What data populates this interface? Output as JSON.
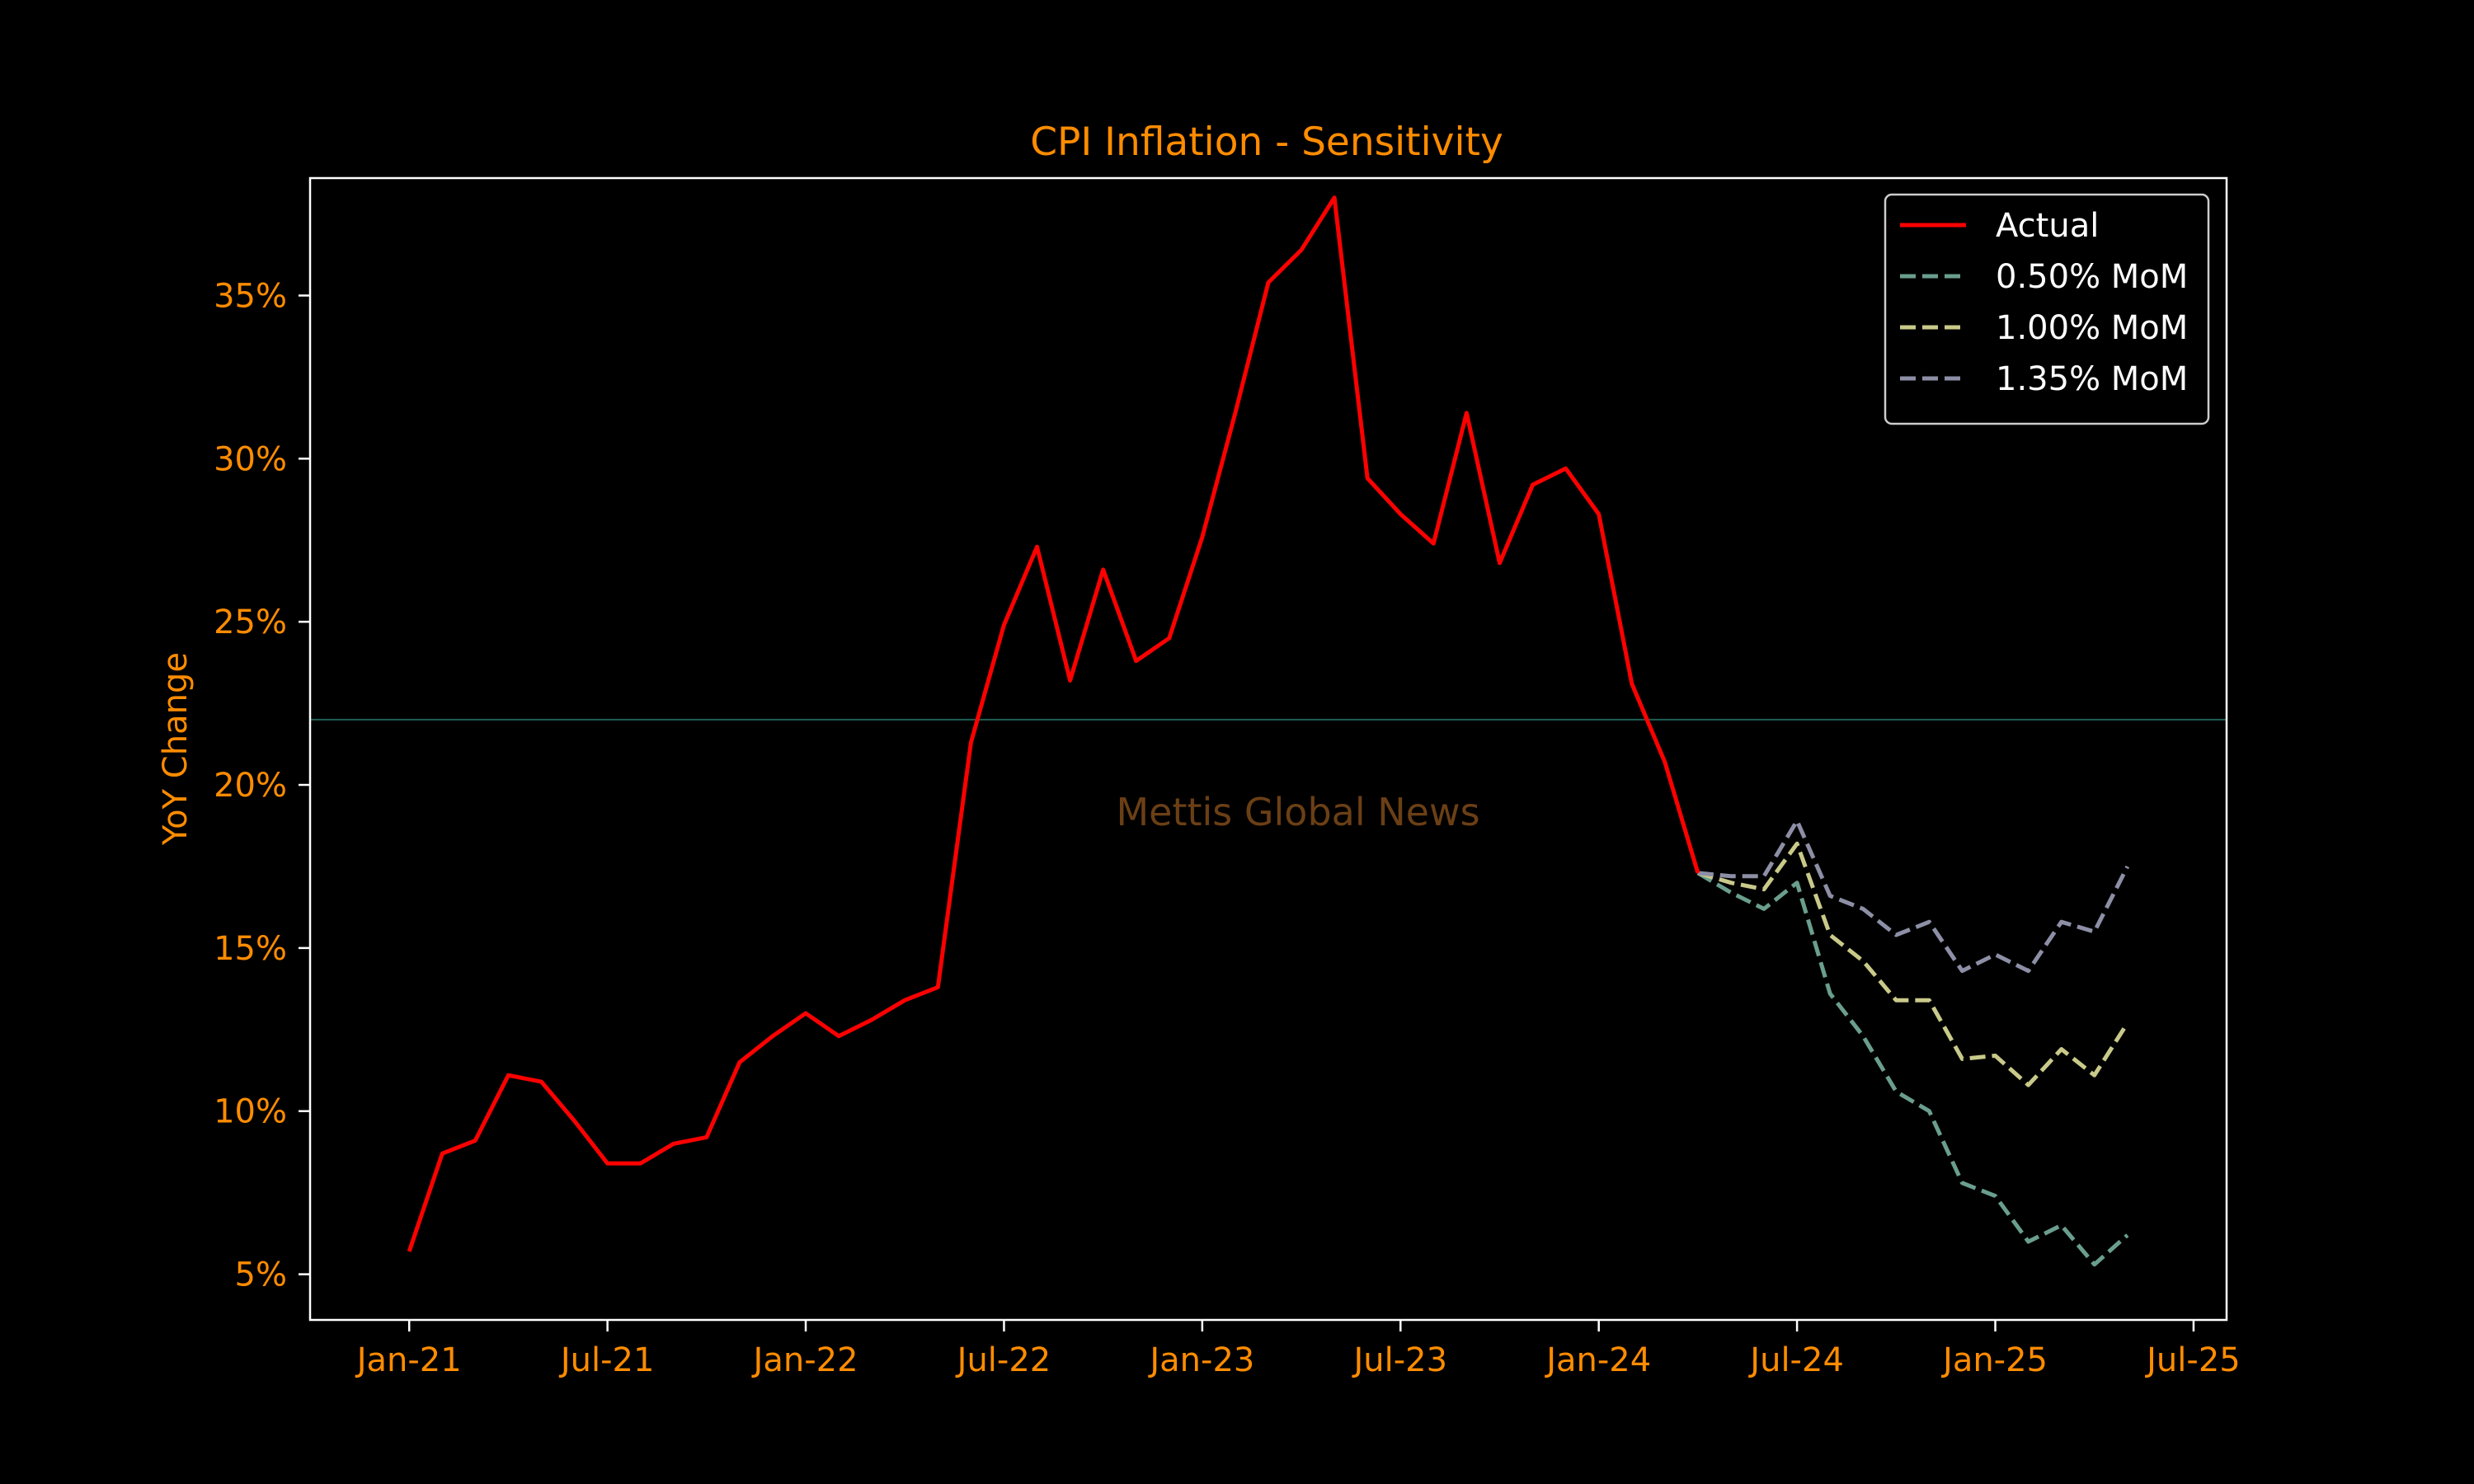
{
  "chart_data": {
    "type": "line",
    "title": "CPI Inflation - Sensitivity",
    "xlabel": "",
    "ylabel": "YoY Change",
    "watermark": "Mettis Global News",
    "x_ticks": [
      "Jan-21",
      "Jul-21",
      "Jan-22",
      "Jul-22",
      "Jan-23",
      "Jul-23",
      "Jan-24",
      "Jul-24",
      "Jan-25",
      "Jul-25"
    ],
    "x_tick_dates": [
      "2021-01",
      "2021-07",
      "2022-01",
      "2022-07",
      "2023-01",
      "2023-07",
      "2024-01",
      "2024-07",
      "2025-01",
      "2025-07"
    ],
    "y_ticks": [
      5,
      10,
      15,
      20,
      25,
      30,
      35
    ],
    "y_tick_labels": [
      "5%",
      "10%",
      "15%",
      "20%",
      "25%",
      "30%",
      "35%"
    ],
    "xlim": [
      "2020-10",
      "2025-08"
    ],
    "ylim": [
      3.6,
      38.6
    ],
    "reference_line": {
      "y": 22.0,
      "color": "#1f5f56"
    },
    "legend_position": "top-right",
    "grid": false,
    "series": [
      {
        "name": "Actual",
        "color": "#ff0000",
        "dash": "solid",
        "x": [
          "2021-01",
          "2021-02",
          "2021-03",
          "2021-04",
          "2021-05",
          "2021-06",
          "2021-07",
          "2021-08",
          "2021-09",
          "2021-10",
          "2021-11",
          "2021-12",
          "2022-01",
          "2022-02",
          "2022-03",
          "2022-04",
          "2022-05",
          "2022-06",
          "2022-07",
          "2022-08",
          "2022-09",
          "2022-10",
          "2022-11",
          "2022-12",
          "2023-01",
          "2023-02",
          "2023-03",
          "2023-04",
          "2023-05",
          "2023-06",
          "2023-07",
          "2023-08",
          "2023-09",
          "2023-10",
          "2023-11",
          "2023-12",
          "2024-01",
          "2024-02",
          "2024-03",
          "2024-04"
        ],
        "values": [
          5.7,
          8.7,
          9.1,
          11.1,
          10.9,
          9.7,
          8.4,
          8.4,
          9.0,
          9.2,
          11.5,
          12.3,
          13.0,
          12.3,
          12.8,
          13.4,
          13.8,
          21.3,
          24.9,
          27.3,
          23.2,
          26.6,
          23.8,
          24.5,
          27.6,
          31.4,
          35.4,
          36.4,
          38.0,
          29.4,
          28.3,
          27.4,
          31.4,
          26.8,
          29.2,
          29.7,
          28.3,
          23.1,
          20.7,
          17.3
        ]
      },
      {
        "name": "0.50% MoM",
        "color": "#6a9e8e",
        "dash": "dashed",
        "x": [
          "2024-04",
          "2024-05",
          "2024-06",
          "2024-07",
          "2024-08",
          "2024-09",
          "2024-10",
          "2024-11",
          "2024-12",
          "2025-01",
          "2025-02",
          "2025-03",
          "2025-04",
          "2025-05"
        ],
        "values": [
          17.3,
          16.7,
          16.2,
          17.0,
          13.6,
          12.3,
          10.6,
          10.0,
          7.8,
          7.4,
          6.0,
          6.5,
          5.3,
          6.2
        ]
      },
      {
        "name": "1.00% MoM",
        "color": "#c9c98a",
        "dash": "dashed",
        "x": [
          "2024-04",
          "2024-05",
          "2024-06",
          "2024-07",
          "2024-08",
          "2024-09",
          "2024-10",
          "2024-11",
          "2024-12",
          "2025-01",
          "2025-02",
          "2025-03",
          "2025-04",
          "2025-05"
        ],
        "values": [
          17.3,
          17.0,
          16.8,
          18.2,
          15.4,
          14.6,
          13.4,
          13.4,
          11.6,
          11.7,
          10.8,
          11.9,
          11.1,
          12.7
        ]
      },
      {
        "name": "1.35% MoM",
        "color": "#8d8fa6",
        "dash": "dashed",
        "x": [
          "2024-04",
          "2024-05",
          "2024-06",
          "2024-07",
          "2024-08",
          "2024-09",
          "2024-10",
          "2024-11",
          "2024-12",
          "2025-01",
          "2025-02",
          "2025-03",
          "2025-04",
          "2025-05"
        ],
        "values": [
          17.3,
          17.2,
          17.2,
          18.9,
          16.6,
          16.2,
          15.4,
          15.8,
          14.3,
          14.8,
          14.3,
          15.8,
          15.5,
          17.5
        ]
      }
    ]
  }
}
